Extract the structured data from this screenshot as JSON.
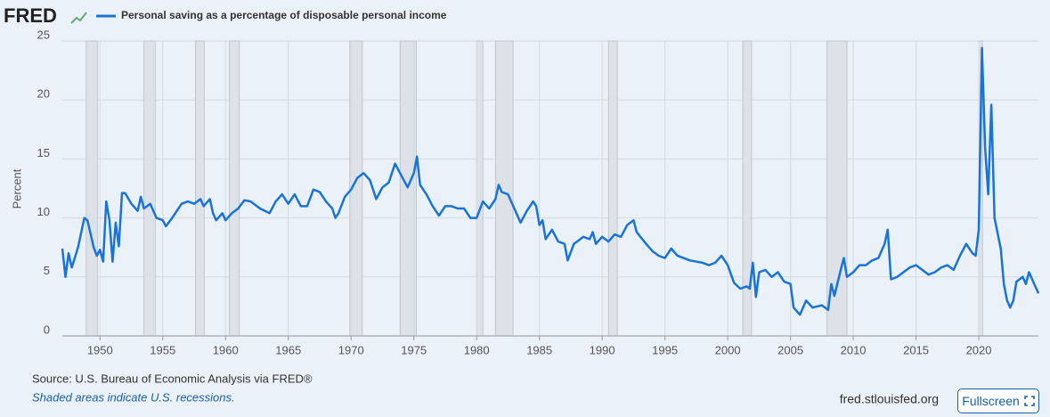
{
  "logo": "FRED",
  "chart_data": {
    "type": "line",
    "ylabel": "Percent",
    "xlim": [
      1947,
      2024.75
    ],
    "ylim": [
      0,
      25
    ],
    "xticks": [
      1950,
      1955,
      1960,
      1965,
      1970,
      1975,
      1980,
      1985,
      1990,
      1995,
      2000,
      2005,
      2010,
      2015,
      2020
    ],
    "yticks": [
      0,
      5,
      10,
      15,
      20,
      25
    ],
    "grid": true,
    "recessions": [
      [
        1948.9,
        1949.8
      ],
      [
        1953.5,
        1954.4
      ],
      [
        1957.6,
        1958.3
      ],
      [
        1960.3,
        1961.1
      ],
      [
        1969.9,
        1970.9
      ],
      [
        1973.9,
        1975.2
      ],
      [
        1980.0,
        1980.5
      ],
      [
        1981.5,
        1982.9
      ],
      [
        1990.5,
        1991.2
      ],
      [
        2001.2,
        2001.9
      ],
      [
        2007.9,
        2009.5
      ],
      [
        2020.0,
        2020.3
      ]
    ],
    "x": [
      1947.0,
      1947.25,
      1947.5,
      1947.75,
      1948.25,
      1948.75,
      1949.0,
      1949.5,
      1949.75,
      1950.0,
      1950.25,
      1950.5,
      1950.75,
      1951.0,
      1951.25,
      1951.5,
      1951.75,
      1952.0,
      1952.5,
      1953.0,
      1953.25,
      1953.5,
      1954.0,
      1954.5,
      1955.0,
      1955.25,
      1955.75,
      1956.5,
      1957.0,
      1957.5,
      1958.0,
      1958.25,
      1958.75,
      1959.0,
      1959.25,
      1959.75,
      1960.0,
      1960.5,
      1961.0,
      1961.5,
      1962.0,
      1962.75,
      1963.5,
      1964.0,
      1964.5,
      1965.0,
      1965.5,
      1966.0,
      1966.5,
      1967.0,
      1967.5,
      1968.0,
      1968.5,
      1968.75,
      1969.0,
      1969.5,
      1970.0,
      1970.5,
      1971.0,
      1971.5,
      1972.0,
      1972.5,
      1973.0,
      1973.5,
      1974.0,
      1974.5,
      1975.0,
      1975.25,
      1975.5,
      1976.0,
      1976.5,
      1977.0,
      1977.5,
      1978.0,
      1978.5,
      1979.0,
      1979.5,
      1980.0,
      1980.5,
      1981.0,
      1981.5,
      1981.75,
      1982.0,
      1982.5,
      1983.0,
      1983.5,
      1984.0,
      1984.5,
      1984.75,
      1985.0,
      1985.25,
      1985.5,
      1986.0,
      1986.5,
      1987.0,
      1987.25,
      1987.75,
      1988.0,
      1988.5,
      1989.0,
      1989.25,
      1989.5,
      1990.0,
      1990.5,
      1991.0,
      1991.5,
      1992.0,
      1992.5,
      1992.75,
      1993.5,
      1994.0,
      1994.5,
      1995.0,
      1995.5,
      1996.0,
      1997.0,
      1998.0,
      1998.5,
      1999.0,
      1999.5,
      2000.0,
      2000.5,
      2001.0,
      2001.5,
      2001.75,
      2002.0,
      2002.25,
      2002.5,
      2003.0,
      2003.5,
      2004.0,
      2004.5,
      2005.0,
      2005.25,
      2005.75,
      2006.25,
      2006.75,
      2007.5,
      2008.0,
      2008.25,
      2008.5,
      2009.0,
      2009.25,
      2009.5,
      2010.0,
      2010.5,
      2011.0,
      2011.5,
      2012.0,
      2012.5,
      2012.75,
      2013.0,
      2013.5,
      2014.0,
      2014.5,
      2015.0,
      2015.5,
      2016.0,
      2016.5,
      2017.0,
      2017.5,
      2018.0,
      2018.5,
      2019.0,
      2019.5,
      2019.75,
      2020.0,
      2020.25,
      2020.5,
      2020.75,
      2021.0,
      2021.25,
      2021.75,
      2022.0,
      2022.25,
      2022.5,
      2022.75,
      2023.0,
      2023.5,
      2023.75,
      2024.0,
      2024.5,
      2024.75
    ],
    "series": [
      {
        "name": "Personal saving as a percentage of disposable personal income",
        "color": "#1a73d6",
        "values": [
          7.4,
          5.0,
          7.0,
          5.8,
          7.5,
          10.0,
          9.8,
          7.5,
          6.8,
          7.3,
          6.3,
          11.4,
          9.8,
          6.3,
          9.6,
          7.6,
          12.1,
          12.1,
          11.2,
          10.6,
          11.8,
          10.8,
          11.2,
          10.0,
          9.8,
          9.3,
          10.0,
          11.2,
          11.4,
          11.2,
          11.6,
          11.0,
          11.6,
          10.4,
          9.8,
          10.4,
          9.8,
          10.4,
          10.8,
          11.5,
          11.4,
          10.8,
          10.4,
          11.4,
          12.0,
          11.2,
          12.0,
          11.0,
          11.0,
          12.4,
          12.2,
          11.4,
          10.8,
          10.0,
          10.4,
          11.8,
          12.4,
          13.4,
          13.8,
          13.2,
          11.6,
          12.6,
          13.0,
          14.6,
          13.6,
          12.6,
          13.8,
          15.2,
          12.8,
          12.0,
          11.0,
          10.2,
          11.0,
          11.0,
          10.8,
          10.8,
          10.0,
          10.0,
          11.4,
          10.8,
          11.6,
          12.8,
          12.2,
          12.0,
          10.8,
          9.6,
          10.6,
          11.4,
          11.0,
          9.4,
          9.8,
          8.2,
          9.0,
          8.0,
          7.8,
          6.4,
          7.8,
          8.0,
          8.4,
          8.2,
          8.8,
          7.8,
          8.4,
          8.0,
          8.6,
          8.4,
          9.4,
          9.8,
          8.8,
          7.8,
          7.2,
          6.8,
          6.6,
          7.4,
          6.8,
          6.4,
          6.2,
          6.0,
          6.2,
          6.8,
          6.0,
          4.5,
          4.0,
          4.2,
          4.0,
          6.2,
          3.3,
          5.4,
          5.6,
          5.0,
          5.4,
          4.6,
          4.4,
          2.4,
          1.8,
          3.0,
          2.4,
          2.6,
          2.2,
          4.4,
          3.4,
          5.6,
          6.6,
          5.0,
          5.4,
          6.0,
          6.0,
          6.4,
          6.6,
          7.8,
          9.0,
          4.8,
          5.0,
          5.4,
          5.8,
          6.0,
          5.6,
          5.2,
          5.4,
          5.8,
          6.0,
          5.6,
          6.8,
          7.8,
          7.0,
          6.8,
          9.0,
          24.4,
          16.0,
          12.0,
          19.6,
          10.0,
          7.4,
          4.4,
          3.0,
          2.4,
          3.0,
          4.6,
          5.0,
          4.4,
          5.4,
          4.2,
          3.6
        ]
      }
    ]
  },
  "source": "Source: U.S. Bureau of Economic Analysis via FRED®",
  "note": "Shaded areas indicate U.S. recessions.",
  "site": "fred.stlouisfed.org",
  "button": "Fullscreen"
}
